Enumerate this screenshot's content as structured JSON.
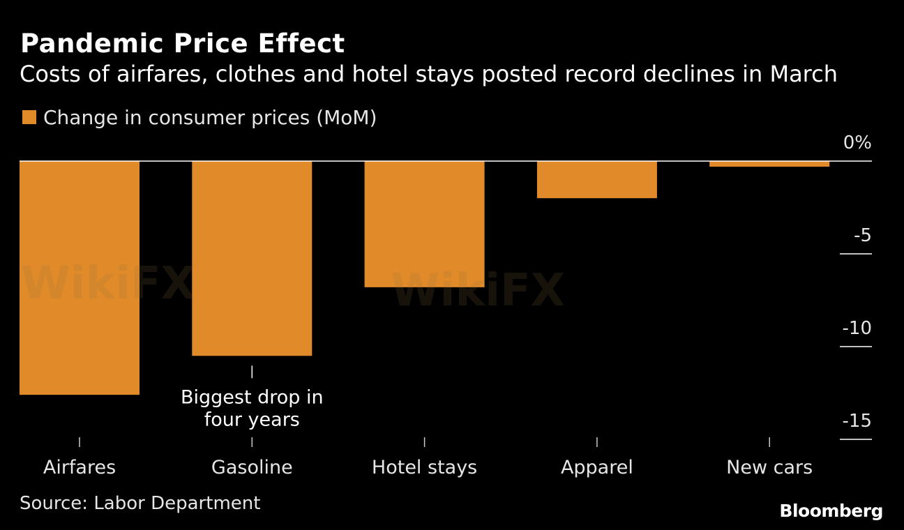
{
  "chart_data": {
    "type": "bar",
    "title": "Pandemic Price Effect",
    "subtitle": "Costs of airfares, clothes and hotel stays posted record declines in March",
    "legend": "Change in consumer prices (MoM)",
    "categories": [
      "Airfares",
      "Gasoline",
      "Hotel stays",
      "Apparel",
      "New cars"
    ],
    "values": [
      -12.6,
      -10.5,
      -6.8,
      -2.0,
      -0.3
    ],
    "ylim": [
      -15,
      0
    ],
    "yticks": [
      {
        "value": 0,
        "label": "0%"
      },
      {
        "value": -5,
        "label": "-5"
      },
      {
        "value": -10,
        "label": "-10"
      },
      {
        "value": -15,
        "label": "-15"
      }
    ],
    "annotation": {
      "category": "Gasoline",
      "lines": [
        "Biggest drop in",
        "four years"
      ]
    },
    "xlabel": "",
    "ylabel": "",
    "legend_position": "top-left",
    "y_axis_position": "right",
    "bar_color": "#e08a2a"
  },
  "footer": {
    "source": "Source: Labor Department",
    "brand": "Bloomberg"
  },
  "watermark_text": "WikiFX"
}
